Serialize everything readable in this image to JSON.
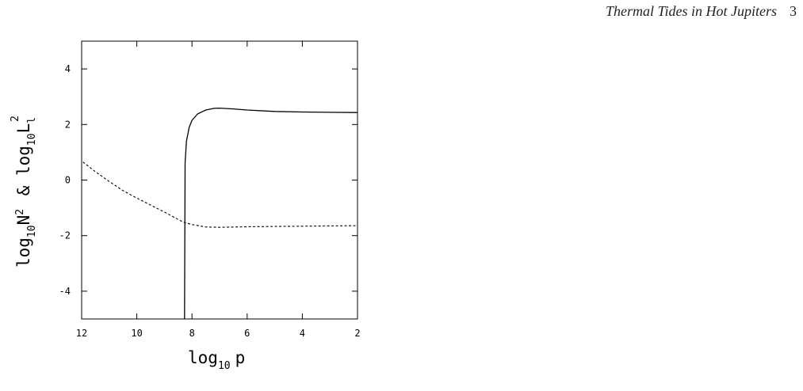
{
  "header": {
    "running_title": "Thermal Tides in Hot Jupiters",
    "page_number": "3"
  },
  "chart_data": {
    "type": "line",
    "xlabel": "log10 p",
    "ylabel": "log10N2 & log10Ll2",
    "xlim": [
      12,
      2
    ],
    "ylim": [
      -5,
      5
    ],
    "x_ticks": [
      12,
      10,
      8,
      6,
      4,
      2
    ],
    "y_ticks": [
      -4,
      -2,
      0,
      2,
      4
    ],
    "grid": false,
    "series": [
      {
        "style": "solid",
        "x": [
          8.27,
          8.25,
          8.2,
          8.1,
          8.0,
          7.8,
          7.5,
          7.2,
          7.0,
          6.5,
          6.0,
          5.0,
          4.0,
          3.0,
          2.0
        ],
        "y": [
          -5.0,
          0.6,
          1.4,
          1.9,
          2.15,
          2.38,
          2.52,
          2.58,
          2.59,
          2.56,
          2.52,
          2.47,
          2.45,
          2.44,
          2.43
        ]
      },
      {
        "style": "dashed",
        "x": [
          11.95,
          11.5,
          11.0,
          10.5,
          10.0,
          9.5,
          9.0,
          8.5,
          8.3,
          8.0,
          7.5,
          7.0,
          6.0,
          5.0,
          4.0,
          3.0,
          2.0
        ],
        "y": [
          0.65,
          0.3,
          -0.05,
          -0.38,
          -0.65,
          -0.9,
          -1.15,
          -1.42,
          -1.52,
          -1.6,
          -1.69,
          -1.7,
          -1.68,
          -1.67,
          -1.66,
          -1.65,
          -1.64
        ]
      }
    ]
  }
}
